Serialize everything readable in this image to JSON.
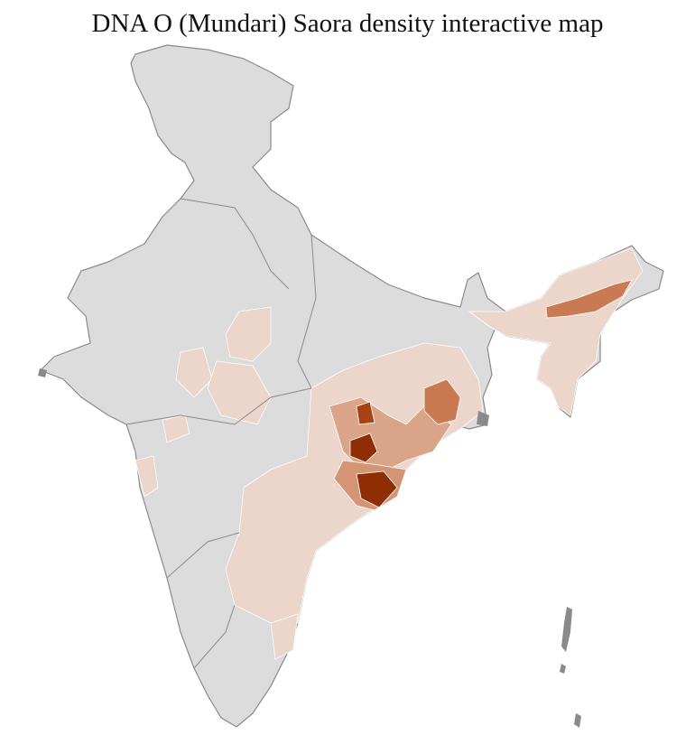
{
  "title": "DNA O (Mundari) Saora density interactive map"
}
